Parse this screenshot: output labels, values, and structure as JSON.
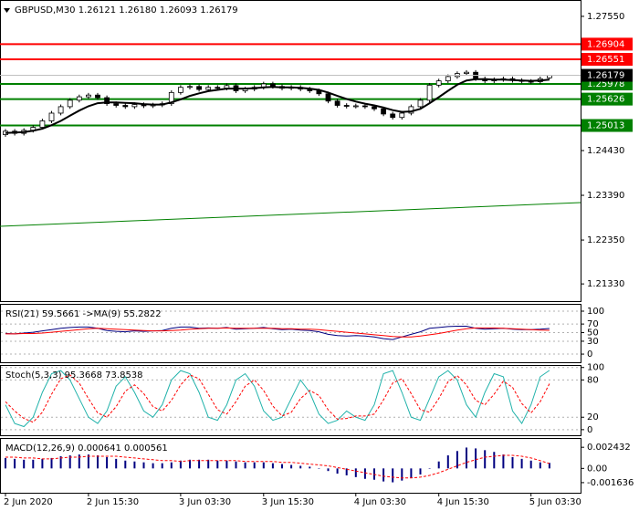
{
  "chart_data": [
    {
      "type": "candlestick",
      "title": "GBPUSD,M30  1.26121 1.26180 1.26093 1.26179",
      "ylim": [
        1.2093,
        1.2793
      ],
      "yticks": [
        {
          "value": 1.2755,
          "label": "1.27550"
        },
        {
          "value": 1.2443,
          "label": "1.24430"
        },
        {
          "value": 1.2339,
          "label": "1.23390"
        },
        {
          "value": 1.2235,
          "label": "1.22350"
        },
        {
          "value": 1.2133,
          "label": "1.21330"
        }
      ],
      "grid": false,
      "categories": [
        "2 Jun 2020",
        null,
        null,
        null,
        null,
        null,
        null,
        null,
        null,
        "2 Jun 15:30",
        null,
        null,
        null,
        null,
        null,
        null,
        null,
        null,
        null,
        "3 Jun 03:30",
        null,
        null,
        null,
        null,
        null,
        null,
        null,
        null,
        "3 Jun 15:30",
        null,
        null,
        null,
        null,
        null,
        null,
        null,
        null,
        null,
        "4 Jun 03:30",
        null,
        null,
        null,
        null,
        null,
        null,
        null,
        null,
        "4 Jun 15:30",
        null,
        null,
        null,
        null,
        null,
        null,
        null,
        null,
        null,
        "5 Jun 03:30",
        null,
        null
      ],
      "open": [
        1.248,
        1.2488,
        1.2483,
        1.249,
        1.2497,
        1.2512,
        1.253,
        1.2545,
        1.256,
        1.2568,
        1.2572,
        1.2566,
        1.2552,
        1.2548,
        1.2545,
        1.255,
        1.2547,
        1.2549,
        1.2552,
        1.2578,
        1.259,
        1.2592,
        1.2585,
        1.259,
        1.2588,
        1.2594,
        1.2582,
        1.2586,
        1.259,
        1.2598,
        1.2592,
        1.2588,
        1.259,
        1.2586,
        1.2582,
        1.2575,
        1.2558,
        1.2548,
        1.2546,
        1.2547,
        1.2545,
        1.254,
        1.2528,
        1.252,
        1.253,
        1.2545,
        1.256,
        1.2595,
        1.2605,
        1.2615,
        1.2622,
        1.2625,
        1.261,
        1.2605,
        1.2608,
        1.261,
        1.2606,
        1.2604,
        1.2603,
        1.26121
      ],
      "high": [
        1.2493,
        1.2493,
        1.2495,
        1.2502,
        1.2517,
        1.2535,
        1.255,
        1.2565,
        1.2573,
        1.2577,
        1.2577,
        1.2571,
        1.2557,
        1.2553,
        1.2555,
        1.2555,
        1.2554,
        1.2557,
        1.2583,
        1.2595,
        1.2597,
        1.2597,
        1.2595,
        1.2595,
        1.2599,
        1.2599,
        1.2591,
        1.2595,
        1.2603,
        1.2603,
        1.2597,
        1.2595,
        1.2595,
        1.2591,
        1.2587,
        1.258,
        1.2563,
        1.2553,
        1.2552,
        1.2552,
        1.255,
        1.2545,
        1.2533,
        1.2535,
        1.255,
        1.2565,
        1.26,
        1.261,
        1.262,
        1.2627,
        1.263,
        1.263,
        1.2615,
        1.2613,
        1.2615,
        1.2615,
        1.2611,
        1.2609,
        1.2615,
        1.2618
      ],
      "low": [
        1.2475,
        1.2478,
        1.2478,
        1.2485,
        1.2492,
        1.2507,
        1.2525,
        1.254,
        1.2555,
        1.2563,
        1.2561,
        1.2547,
        1.2543,
        1.254,
        1.254,
        1.2542,
        1.2542,
        1.2544,
        1.2547,
        1.2573,
        1.2585,
        1.258,
        1.258,
        1.2583,
        1.2583,
        1.2577,
        1.2577,
        1.2581,
        1.2585,
        1.2587,
        1.2583,
        1.2583,
        1.2581,
        1.2577,
        1.257,
        1.2553,
        1.2543,
        1.2541,
        1.2541,
        1.254,
        1.2535,
        1.2523,
        1.2515,
        1.2515,
        1.2525,
        1.254,
        1.2555,
        1.259,
        1.26,
        1.261,
        1.2617,
        1.2605,
        1.26,
        1.26,
        1.2603,
        1.2601,
        1.2599,
        1.2598,
        1.2598,
        1.26093
      ],
      "close": [
        1.2488,
        1.2483,
        1.249,
        1.2497,
        1.2512,
        1.253,
        1.2545,
        1.256,
        1.2568,
        1.2572,
        1.2566,
        1.2552,
        1.2548,
        1.2545,
        1.255,
        1.2547,
        1.2549,
        1.2552,
        1.2578,
        1.259,
        1.2592,
        1.2585,
        1.259,
        1.2588,
        1.2594,
        1.2582,
        1.2586,
        1.259,
        1.2598,
        1.2592,
        1.2588,
        1.259,
        1.2586,
        1.2582,
        1.2575,
        1.2558,
        1.2548,
        1.2546,
        1.2547,
        1.2545,
        1.254,
        1.2528,
        1.252,
        1.253,
        1.2545,
        1.256,
        1.2595,
        1.2605,
        1.2615,
        1.2622,
        1.2625,
        1.261,
        1.2605,
        1.2608,
        1.261,
        1.2606,
        1.2604,
        1.2603,
        1.261,
        1.26179
      ],
      "lines": [
        {
          "color": "#000000",
          "dashed": false,
          "values": [
            1.2484,
            1.2485,
            1.2486,
            1.2489,
            1.2494,
            1.2502,
            1.2512,
            1.2524,
            1.2536,
            1.2546,
            1.2553,
            1.2555,
            1.2555,
            1.2554,
            1.2553,
            1.2551,
            1.255,
            1.255,
            1.2555,
            1.2562,
            1.257,
            1.2576,
            1.2581,
            1.2584,
            1.2587,
            1.2587,
            1.2587,
            1.2588,
            1.259,
            1.2591,
            1.259,
            1.259,
            1.2589,
            1.2587,
            1.2584,
            1.2578,
            1.257,
            1.2563,
            1.2557,
            1.2552,
            1.2548,
            1.2543,
            1.2537,
            1.2533,
            1.2534,
            1.254,
            1.2553,
            1.2567,
            1.2582,
            1.2596,
            1.2606,
            1.2609,
            1.2609,
            1.2608,
            1.2608,
            1.2607,
            1.2606,
            1.2605,
            1.2606,
            1.2608
          ]
        }
      ],
      "levels": [
        {
          "value": 1.26904,
          "color": "#ff0000"
        },
        {
          "value": 1.26551,
          "color": "#ff0000"
        },
        {
          "value": 1.25978,
          "color": "#008000"
        },
        {
          "value": 1.25626,
          "color": "#008000"
        },
        {
          "value": 1.25013,
          "color": "#008000"
        }
      ],
      "last_color": "#000000",
      "trendline": {
        "color": "#008000",
        "values": [
          1.2267,
          1.2322
        ]
      }
    },
    {
      "type": "line",
      "title": "RSI(21) 59.5661 ->MA(9) 55.2822",
      "ylim": [
        -19,
        117
      ],
      "yticks": [
        100,
        70,
        50,
        30,
        0
      ],
      "grid": true,
      "lines": [
        {
          "color": "#000080",
          "dashed": false,
          "values": [
            48,
            47,
            49,
            51,
            54,
            57,
            60,
            62,
            63,
            63,
            60,
            55,
            53,
            52,
            54,
            53,
            54,
            55,
            60,
            63,
            63,
            60,
            61,
            60,
            62,
            58,
            59,
            60,
            62,
            59,
            57,
            58,
            56,
            55,
            52,
            46,
            43,
            42,
            43,
            42,
            40,
            36,
            34,
            40,
            46,
            52,
            60,
            62,
            64,
            65,
            65,
            60,
            58,
            59,
            60,
            58,
            57,
            57,
            58,
            59.5661
          ]
        },
        {
          "color": "#ff0000",
          "dashed": false,
          "values": [
            47,
            47,
            48,
            48,
            49,
            51,
            53,
            55,
            57,
            59,
            60,
            59,
            58,
            57,
            56,
            55,
            54,
            54,
            55,
            56,
            58,
            59,
            60,
            60,
            61,
            60,
            60,
            60,
            60,
            60,
            59,
            59,
            58,
            58,
            57,
            55,
            53,
            51,
            49,
            47,
            45,
            43,
            41,
            40,
            40,
            42,
            45,
            48,
            52,
            56,
            59,
            61,
            61,
            61,
            60,
            59,
            58,
            57,
            56,
            55.2822
          ]
        }
      ]
    },
    {
      "type": "line",
      "title": "Stoch(5,3,3) 95.3668 73.8538",
      "ylim": [
        -9,
        104
      ],
      "yticks": [
        100,
        80,
        20,
        0
      ],
      "grid": true,
      "lines": [
        {
          "color": "#20b2aa",
          "dashed": false,
          "values": [
            40,
            10,
            5,
            20,
            60,
            90,
            95,
            80,
            50,
            20,
            10,
            30,
            70,
            85,
            60,
            30,
            20,
            40,
            80,
            95,
            90,
            60,
            20,
            15,
            40,
            80,
            90,
            70,
            30,
            15,
            20,
            50,
            80,
            60,
            25,
            10,
            15,
            30,
            20,
            15,
            40,
            90,
            95,
            60,
            20,
            15,
            50,
            85,
            95,
            80,
            40,
            20,
            60,
            90,
            85,
            30,
            10,
            40,
            85,
            95.3668
          ]
        },
        {
          "color": "#ff0000",
          "dashed": true,
          "values": [
            45,
            30,
            18,
            12,
            28,
            57,
            82,
            88,
            75,
            50,
            27,
            20,
            37,
            62,
            72,
            58,
            37,
            30,
            47,
            72,
            88,
            82,
            57,
            32,
            25,
            45,
            70,
            80,
            63,
            38,
            22,
            28,
            50,
            63,
            55,
            32,
            17,
            18,
            22,
            22,
            25,
            48,
            75,
            82,
            58,
            32,
            28,
            50,
            77,
            87,
            72,
            47,
            40,
            57,
            78,
            68,
            42,
            27,
            45,
            73.8538
          ]
        }
      ]
    },
    {
      "type": "bar",
      "title": "MACD(12,26,9) 0.000641 0.000561",
      "ylim": [
        -0.0028,
        0.0035
      ],
      "yticks": [
        0.002432,
        {
          "value": 0,
          "label": "0.00"
        },
        -0.001636
      ],
      "grid": false,
      "color": "#000080",
      "values": [
        0.0012,
        0.0011,
        0.001,
        0.001,
        0.0011,
        0.0012,
        0.0014,
        0.0015,
        0.0016,
        0.0016,
        0.0015,
        0.0013,
        0.0011,
        0.0009,
        0.0008,
        0.0007,
        0.0006,
        0.0006,
        0.0007,
        0.0009,
        0.001,
        0.001,
        0.001,
        0.0009,
        0.0009,
        0.0008,
        0.0007,
        0.0007,
        0.0007,
        0.0006,
        0.0005,
        0.0004,
        0.0003,
        0.0002,
        0,
        -0.0003,
        -0.0006,
        -0.0008,
        -0.001,
        -0.0012,
        -0.0013,
        -0.0015,
        -0.0016,
        -0.0014,
        -0.0011,
        -0.0007,
        0,
        0.0008,
        0.0015,
        0.002,
        0.0024,
        0.0023,
        0.0021,
        0.0019,
        0.0016,
        0.0013,
        0.0011,
        0.0009,
        0.0007,
        0.000641
      ],
      "lines": [
        {
          "color": "#ff0000",
          "dashed": true,
          "values": [
            0.0013,
            0.0013,
            0.0012,
            0.0012,
            0.0011,
            0.0011,
            0.0012,
            0.0013,
            0.0013,
            0.0014,
            0.0014,
            0.0014,
            0.0014,
            0.0013,
            0.0012,
            0.0011,
            0.001,
            0.0009,
            0.0009,
            0.0008,
            0.0009,
            0.0009,
            0.0009,
            0.0009,
            0.0009,
            0.0009,
            0.0008,
            0.0008,
            0.0008,
            0.0008,
            0.0007,
            0.0007,
            0.0006,
            0.0005,
            0.0004,
            0.0003,
            0.0001,
            -0.0001,
            -0.0003,
            -0.0005,
            -0.0007,
            -0.0009,
            -0.001,
            -0.0011,
            -0.0011,
            -0.001,
            -0.0008,
            -0.0005,
            -0.0001,
            0.0003,
            0.0007,
            0.001,
            0.0013,
            0.0014,
            0.0015,
            0.0015,
            0.0014,
            0.0012,
            0.0009,
            0.000561
          ]
        }
      ]
    }
  ]
}
